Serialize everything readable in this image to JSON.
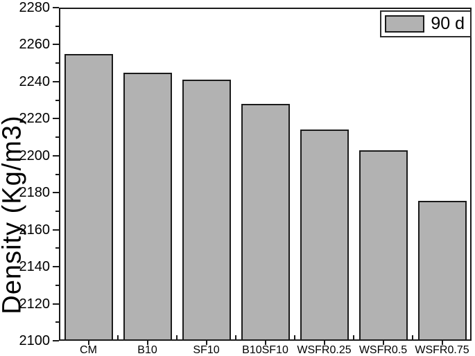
{
  "chart_data": {
    "type": "bar",
    "title": "",
    "categories": [
      "CM",
      "B10",
      "SF10",
      "B10SF10",
      "WSFR0.25",
      "WSFR0.5",
      "WSFR0.75"
    ],
    "values": [
      2255,
      2245,
      2241,
      2228,
      2214,
      2203,
      2175.5
    ],
    "series": [
      {
        "name": "90 d",
        "values": [
          2255,
          2245,
          2241,
          2228,
          2214,
          2203,
          2175.5
        ]
      }
    ],
    "xlabel": "",
    "ylabel": "Density (Kg/m3)",
    "ylim": [
      2100,
      2280
    ],
    "ytick_step": 20,
    "yminor_step": 10,
    "ytick_labels": [
      "2100",
      "2120",
      "2140",
      "2160",
      "2180",
      "2200",
      "2220",
      "2240",
      "2260",
      "2280"
    ],
    "grid": false,
    "legend": {
      "position": "top-right",
      "entries": [
        {
          "label": "90 d",
          "swatch_fill": "#b2b2b2",
          "swatch_edge": "#1a1a1a"
        }
      ]
    },
    "colors": {
      "bar_fill": "#b2b2b2",
      "bar_edge": "#1a1a1a",
      "axis": "#1a1a1a",
      "text": "#000000",
      "background": "#ffffff"
    }
  }
}
